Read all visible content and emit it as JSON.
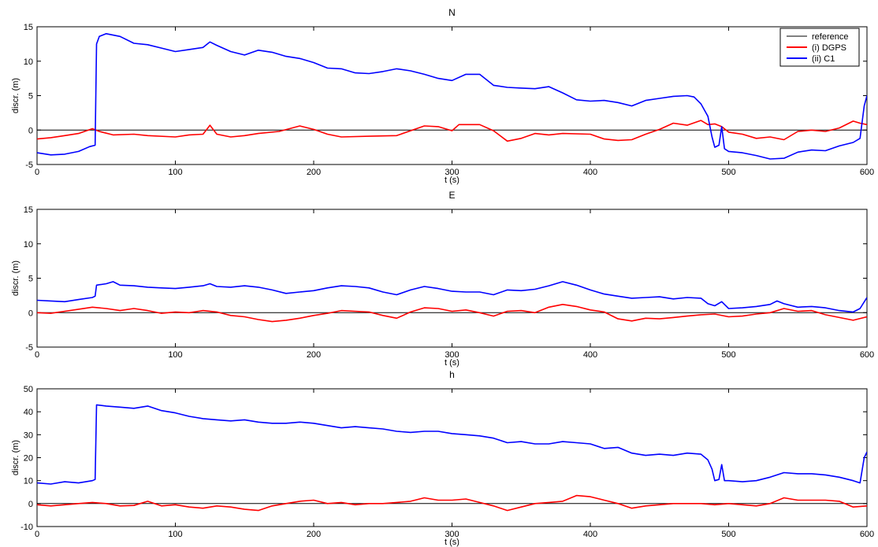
{
  "figure": {
    "colors": {
      "reference": "#000000",
      "dgps": "#ff0000",
      "c1": "#0000ff",
      "axes": "#000000",
      "background": "#ffffff"
    },
    "legend": {
      "placement": "top-right",
      "subplot": 0,
      "entries": [
        "reference",
        "(i) DGPS",
        "(ii) C1"
      ]
    }
  },
  "chart_data": [
    {
      "type": "line",
      "title": "N",
      "xlabel": "t (s)",
      "ylabel": "discr. (m)",
      "xlim": [
        0,
        600
      ],
      "ylim": [
        -5,
        15
      ],
      "xticks": [
        0,
        100,
        200,
        300,
        400,
        500,
        600
      ],
      "yticks": [
        -5,
        0,
        5,
        10,
        15
      ],
      "series": [
        {
          "name": "reference",
          "color": "#000000",
          "x": [
            0,
            600
          ],
          "y": [
            0,
            0
          ]
        },
        {
          "name": "(i) DGPS",
          "color": "#ff0000",
          "x": [
            0,
            10,
            20,
            30,
            40,
            45,
            55,
            70,
            80,
            100,
            110,
            120,
            125,
            130,
            140,
            150,
            160,
            175,
            190,
            200,
            210,
            220,
            240,
            260,
            280,
            290,
            300,
            305,
            320,
            330,
            340,
            350,
            360,
            370,
            380,
            400,
            410,
            420,
            430,
            440,
            450,
            460,
            470,
            480,
            485,
            490,
            495,
            500,
            510,
            520,
            530,
            540,
            550,
            560,
            570,
            580,
            590,
            595,
            600
          ],
          "y": [
            -1.3,
            -1.1,
            -0.8,
            -0.5,
            0.2,
            -0.2,
            -0.7,
            -0.6,
            -0.8,
            -1.0,
            -0.7,
            -0.6,
            0.7,
            -0.6,
            -1.0,
            -0.8,
            -0.5,
            -0.2,
            0.6,
            0.1,
            -0.6,
            -1.0,
            -0.9,
            -0.8,
            0.6,
            0.5,
            -0.1,
            0.8,
            0.8,
            -0.1,
            -1.6,
            -1.2,
            -0.5,
            -0.7,
            -0.5,
            -0.6,
            -1.3,
            -1.5,
            -1.4,
            -0.6,
            0.1,
            1.0,
            0.7,
            1.4,
            0.8,
            0.9,
            0.5,
            -0.3,
            -0.6,
            -1.2,
            -1.0,
            -1.4,
            -0.2,
            0.0,
            -0.2,
            0.3,
            1.3,
            1.0,
            0.8
          ]
        },
        {
          "name": "(ii) C1",
          "color": "#0000ff",
          "x": [
            0,
            10,
            20,
            30,
            38,
            42,
            43,
            45,
            50,
            60,
            70,
            80,
            90,
            100,
            110,
            120,
            125,
            130,
            140,
            150,
            160,
            170,
            180,
            190,
            200,
            210,
            220,
            230,
            240,
            250,
            260,
            270,
            280,
            290,
            300,
            310,
            320,
            330,
            340,
            350,
            360,
            370,
            380,
            390,
            400,
            410,
            420,
            430,
            440,
            450,
            460,
            470,
            475,
            480,
            485,
            488,
            490,
            493,
            495,
            497,
            500,
            510,
            520,
            530,
            540,
            550,
            560,
            570,
            580,
            590,
            595,
            598,
            600
          ],
          "y": [
            -3.3,
            -3.6,
            -3.5,
            -3.1,
            -2.4,
            -2.2,
            12.5,
            13.6,
            14.0,
            13.6,
            12.6,
            12.4,
            11.9,
            11.4,
            11.7,
            12.0,
            12.8,
            12.3,
            11.4,
            10.9,
            11.6,
            11.3,
            10.7,
            10.4,
            9.8,
            9.0,
            8.9,
            8.3,
            8.2,
            8.5,
            8.9,
            8.6,
            8.1,
            7.5,
            7.2,
            8.1,
            8.1,
            6.5,
            6.2,
            6.1,
            6.0,
            6.3,
            5.4,
            4.4,
            4.2,
            4.3,
            4.0,
            3.5,
            4.3,
            4.6,
            4.9,
            5.0,
            4.8,
            3.8,
            2.0,
            -1.0,
            -2.5,
            -2.2,
            0.5,
            -2.7,
            -3.1,
            -3.3,
            -3.7,
            -4.2,
            -4.1,
            -3.2,
            -2.9,
            -3.0,
            -2.3,
            -1.8,
            -1.2,
            3.5,
            5.0
          ]
        }
      ]
    },
    {
      "type": "line",
      "title": "E",
      "xlabel": "t (s)",
      "ylabel": "discr. (m)",
      "xlim": [
        0,
        600
      ],
      "ylim": [
        -5,
        15
      ],
      "xticks": [
        0,
        100,
        200,
        300,
        400,
        500,
        600
      ],
      "yticks": [
        -5,
        0,
        5,
        10,
        15
      ],
      "series": [
        {
          "name": "reference",
          "color": "#000000",
          "x": [
            0,
            600
          ],
          "y": [
            0,
            0
          ]
        },
        {
          "name": "(i) DGPS",
          "color": "#ff0000",
          "x": [
            0,
            10,
            20,
            30,
            40,
            50,
            60,
            70,
            80,
            90,
            100,
            110,
            120,
            130,
            140,
            150,
            160,
            170,
            180,
            190,
            200,
            210,
            220,
            230,
            240,
            250,
            260,
            270,
            280,
            290,
            300,
            310,
            320,
            330,
            340,
            350,
            360,
            370,
            380,
            390,
            400,
            410,
            420,
            430,
            440,
            450,
            460,
            470,
            480,
            490,
            500,
            510,
            520,
            530,
            540,
            550,
            560,
            570,
            580,
            590,
            600
          ],
          "y": [
            0.0,
            -0.1,
            0.2,
            0.5,
            0.8,
            0.6,
            0.3,
            0.6,
            0.3,
            -0.1,
            0.1,
            0.0,
            0.3,
            0.1,
            -0.4,
            -0.6,
            -1.0,
            -1.3,
            -1.1,
            -0.8,
            -0.4,
            -0.1,
            0.3,
            0.2,
            0.1,
            -0.4,
            -0.8,
            0.1,
            0.7,
            0.6,
            0.2,
            0.4,
            0.0,
            -0.5,
            0.2,
            0.3,
            0.0,
            0.8,
            1.2,
            0.9,
            0.4,
            0.1,
            -0.9,
            -1.2,
            -0.8,
            -0.9,
            -0.7,
            -0.5,
            -0.3,
            -0.2,
            -0.6,
            -0.5,
            -0.2,
            0.0,
            0.6,
            0.2,
            0.3,
            -0.3,
            -0.7,
            -1.1,
            -0.6
          ]
        },
        {
          "name": "(ii) C1",
          "color": "#0000ff",
          "x": [
            0,
            10,
            20,
            30,
            40,
            42,
            43,
            50,
            55,
            60,
            70,
            80,
            90,
            100,
            110,
            120,
            125,
            130,
            140,
            150,
            160,
            170,
            180,
            190,
            200,
            210,
            220,
            230,
            240,
            250,
            260,
            270,
            280,
            290,
            300,
            310,
            320,
            330,
            340,
            350,
            360,
            370,
            380,
            390,
            400,
            410,
            420,
            430,
            440,
            450,
            460,
            470,
            480,
            485,
            490,
            495,
            500,
            510,
            520,
            530,
            535,
            540,
            550,
            560,
            570,
            580,
            590,
            595,
            600
          ],
          "y": [
            1.8,
            1.7,
            1.6,
            1.9,
            2.2,
            2.4,
            4.0,
            4.2,
            4.5,
            4.0,
            3.9,
            3.7,
            3.6,
            3.5,
            3.7,
            3.9,
            4.2,
            3.8,
            3.7,
            3.9,
            3.7,
            3.3,
            2.8,
            3.0,
            3.2,
            3.6,
            3.9,
            3.8,
            3.6,
            3.0,
            2.6,
            3.3,
            3.8,
            3.5,
            3.1,
            3.0,
            3.0,
            2.6,
            3.3,
            3.2,
            3.4,
            3.9,
            4.5,
            4.0,
            3.3,
            2.7,
            2.4,
            2.1,
            2.2,
            2.3,
            2.0,
            2.2,
            2.1,
            1.3,
            1.0,
            1.6,
            0.6,
            0.7,
            0.9,
            1.2,
            1.7,
            1.3,
            0.8,
            0.9,
            0.7,
            0.3,
            0.1,
            0.6,
            2.2
          ]
        }
      ]
    },
    {
      "type": "line",
      "title": "h",
      "xlabel": "t (s)",
      "ylabel": "discr. (m)",
      "xlim": [
        0,
        600
      ],
      "ylim": [
        -10,
        50
      ],
      "xticks": [
        0,
        100,
        200,
        300,
        400,
        500,
        600
      ],
      "yticks": [
        -10,
        0,
        10,
        20,
        30,
        40,
        50
      ],
      "series": [
        {
          "name": "reference",
          "color": "#000000",
          "x": [
            0,
            600
          ],
          "y": [
            0,
            0
          ]
        },
        {
          "name": "(i) DGPS",
          "color": "#ff0000",
          "x": [
            0,
            10,
            20,
            30,
            40,
            50,
            60,
            70,
            80,
            90,
            100,
            110,
            120,
            130,
            140,
            150,
            160,
            170,
            180,
            190,
            200,
            210,
            220,
            230,
            240,
            250,
            260,
            270,
            280,
            290,
            300,
            310,
            320,
            330,
            340,
            350,
            360,
            370,
            380,
            390,
            400,
            410,
            420,
            430,
            440,
            450,
            460,
            470,
            480,
            490,
            500,
            510,
            520,
            530,
            540,
            550,
            560,
            570,
            580,
            590,
            600
          ],
          "y": [
            -0.5,
            -1.0,
            -0.5,
            0.0,
            0.5,
            0.0,
            -1.0,
            -0.8,
            1.0,
            -1.0,
            -0.5,
            -1.5,
            -2.0,
            -1.0,
            -1.5,
            -2.5,
            -3.0,
            -1.0,
            0.0,
            1.0,
            1.5,
            0.0,
            0.5,
            -0.5,
            0.0,
            0.0,
            0.5,
            1.0,
            2.5,
            1.5,
            1.5,
            2.0,
            0.5,
            -1.0,
            -3.0,
            -1.5,
            0.0,
            0.5,
            1.0,
            3.5,
            3.0,
            1.5,
            0.0,
            -2.0,
            -1.0,
            -0.5,
            0.0,
            0.0,
            0.0,
            -0.5,
            0.0,
            -0.5,
            -1.0,
            0.0,
            2.5,
            1.5,
            1.5,
            1.5,
            1.0,
            -1.5,
            -1.0
          ]
        },
        {
          "name": "(ii) C1",
          "color": "#0000ff",
          "x": [
            0,
            10,
            20,
            30,
            40,
            42,
            43,
            50,
            60,
            70,
            80,
            90,
            100,
            110,
            120,
            130,
            140,
            150,
            160,
            170,
            180,
            190,
            200,
            210,
            220,
            230,
            240,
            250,
            260,
            270,
            280,
            290,
            300,
            310,
            320,
            330,
            340,
            350,
            360,
            370,
            380,
            390,
            400,
            410,
            420,
            430,
            440,
            450,
            460,
            470,
            480,
            485,
            488,
            490,
            493,
            495,
            497,
            500,
            510,
            520,
            530,
            540,
            550,
            560,
            570,
            580,
            590,
            595,
            598,
            600
          ],
          "y": [
            9.0,
            8.5,
            9.5,
            9.0,
            10.0,
            10.5,
            43.0,
            42.5,
            42.0,
            41.5,
            42.5,
            40.5,
            39.5,
            38.0,
            37.0,
            36.5,
            36.0,
            36.5,
            35.5,
            35.0,
            35.0,
            35.5,
            35.0,
            34.0,
            33.0,
            33.5,
            33.0,
            32.5,
            31.5,
            31.0,
            31.5,
            31.5,
            30.5,
            30.0,
            29.5,
            28.5,
            26.5,
            27.0,
            26.0,
            26.0,
            27.0,
            26.5,
            26.0,
            24.0,
            24.5,
            22.0,
            21.0,
            21.5,
            21.0,
            22.0,
            21.5,
            19.0,
            15.0,
            10.0,
            10.5,
            17.0,
            10.0,
            10.0,
            9.5,
            10.0,
            11.5,
            13.5,
            13.0,
            13.0,
            12.5,
            11.5,
            10.0,
            9.0,
            20.0,
            22.5
          ]
        }
      ]
    }
  ]
}
